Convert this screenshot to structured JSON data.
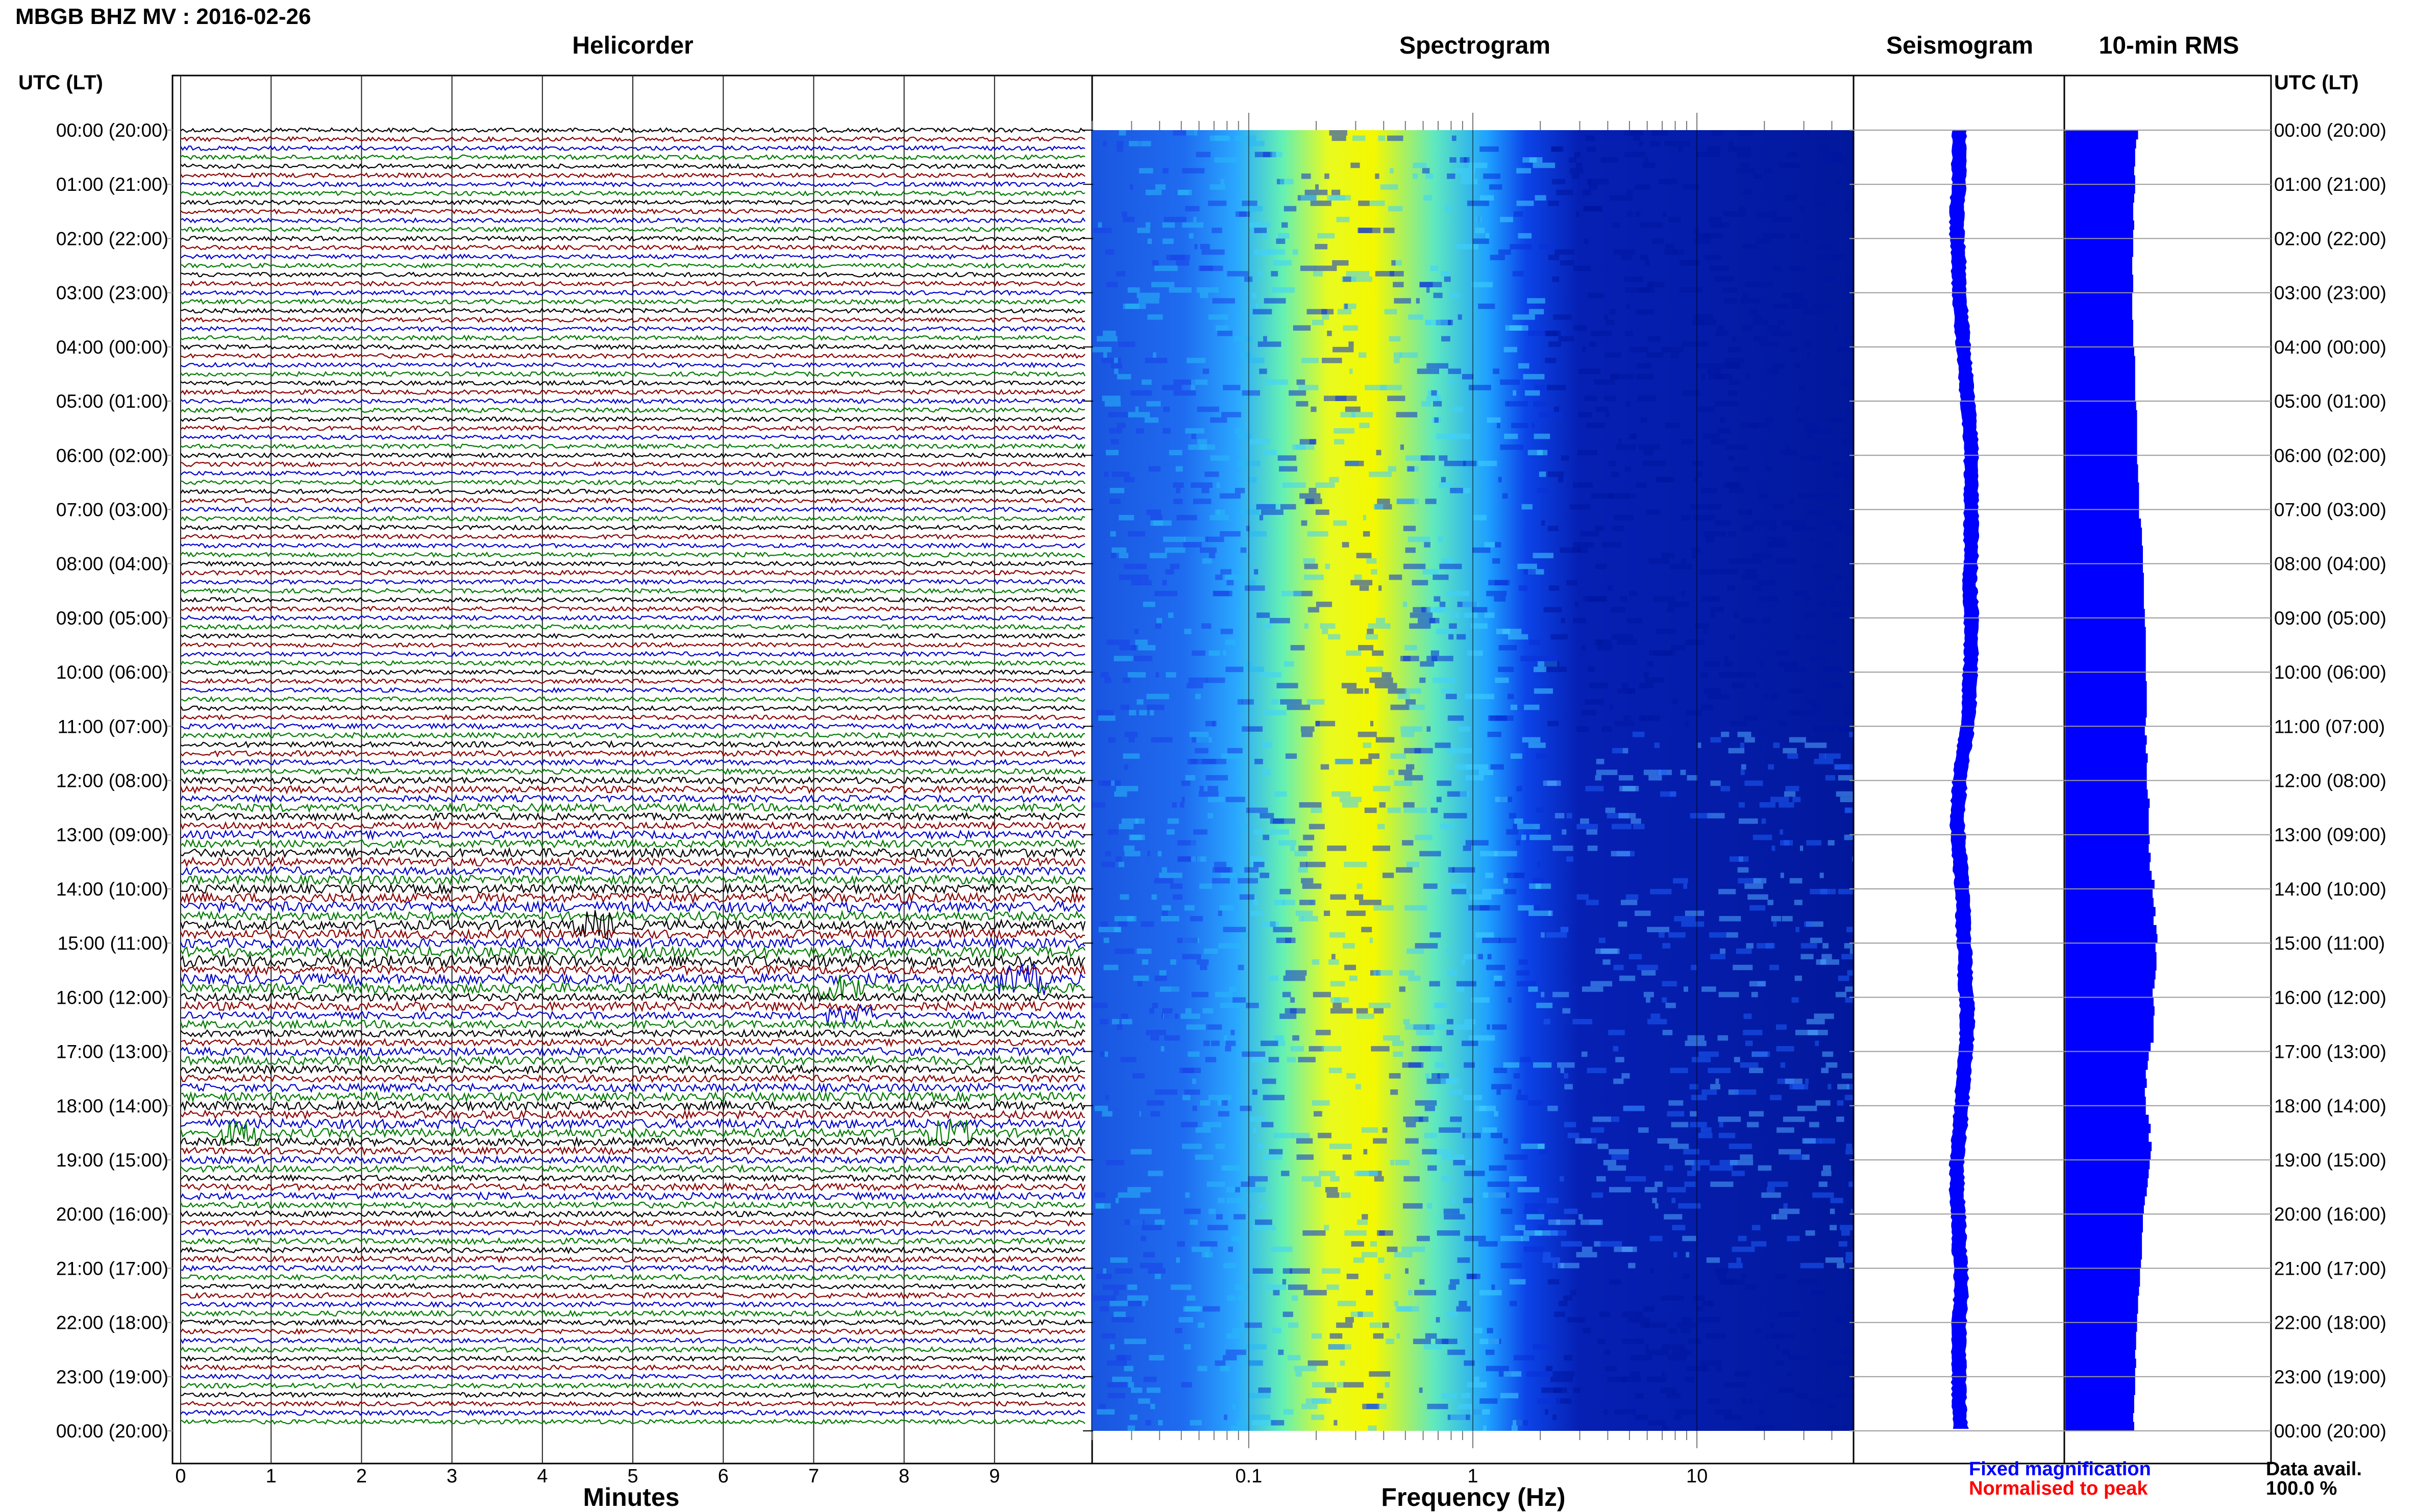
{
  "title": "MBGB BHZ MV : 2016-02-26",
  "utc_label": "UTC (LT)",
  "panels": {
    "helicorder": "Helicorder",
    "spectrogram": "Spectrogram",
    "seismogram": "Seismogram",
    "rms": "10-min RMS"
  },
  "legend": {
    "fixed": "Fixed magnification",
    "normalised": "Normalised to peak",
    "fixed_color": "#0000ff",
    "normalised_color": "#ff0000"
  },
  "availability": {
    "label": "Data avail.",
    "value": "100.0 %"
  },
  "colors": {
    "trace_cycle": [
      "#000000",
      "#8b0000",
      "#0000cd",
      "#007a00"
    ],
    "seismogram": "#0000ff",
    "rms": "#0000ff",
    "spectrogram_map": [
      "#00008b",
      "#0030ff",
      "#18b4ff",
      "#5ff2b0",
      "#ffff00"
    ]
  },
  "chart_data": [
    {
      "type": "line",
      "name": "helicorder",
      "title": "Helicorder",
      "xlabel": "Minutes",
      "x_ticks": [
        "0",
        "1",
        "2",
        "3",
        "4",
        "5",
        "6",
        "7",
        "8",
        "9"
      ],
      "xlim": [
        0,
        10
      ],
      "y_ticks": [
        "00:00 (20:00)",
        "01:00 (21:00)",
        "02:00 (22:00)",
        "03:00 (23:00)",
        "04:00 (00:00)",
        "05:00 (01:00)",
        "06:00 (02:00)",
        "07:00 (03:00)",
        "08:00 (04:00)",
        "09:00 (05:00)",
        "10:00 (06:00)",
        "11:00 (07:00)",
        "12:00 (08:00)",
        "13:00 (09:00)",
        "14:00 (10:00)",
        "15:00 (11:00)",
        "16:00 (12:00)",
        "17:00 (13:00)",
        "18:00 (14:00)",
        "19:00 (15:00)",
        "20:00 (16:00)",
        "21:00 (17:00)",
        "22:00 (18:00)",
        "23:00 (19:00)",
        "00:00 (20:00)"
      ],
      "lines_per_hour": 6,
      "line_amplitude": [
        1.0,
        1.0,
        1.0,
        1.0,
        1.0,
        1.0,
        1.0,
        1.0,
        1.0,
        1.0,
        1.0,
        1.0,
        1.0,
        1.0,
        1.0,
        1.0,
        1.0,
        1.0,
        1.0,
        1.0,
        1.0,
        1.0,
        1.0,
        1.0,
        1.0,
        1.0,
        1.0,
        1.0,
        1.0,
        1.0,
        1.0,
        1.0,
        1.0,
        1.0,
        1.0,
        1.0,
        1.0,
        1.0,
        1.0,
        1.0,
        1.0,
        1.0,
        1.0,
        1.0,
        1.0,
        1.0,
        1.0,
        1.0,
        1.0,
        1.0,
        1.0,
        1.0,
        1.0,
        1.0,
        1.0,
        1.0,
        1.0,
        1.0,
        1.0,
        1.0,
        1.0,
        1.0,
        1.0,
        1.0,
        1.0,
        1.0,
        1.2,
        1.2,
        1.3,
        1.3,
        1.2,
        1.2,
        1.5,
        1.6,
        1.5,
        1.8,
        1.6,
        1.5,
        1.8,
        1.7,
        2.0,
        1.9,
        1.8,
        2.0,
        2.0,
        2.2,
        2.4,
        2.0,
        2.2,
        2.0,
        2.2,
        2.4,
        2.6,
        2.0,
        2.4,
        2.2,
        1.8,
        2.0,
        1.6,
        1.8,
        1.6,
        1.5,
        1.8,
        2.0,
        1.8,
        1.6,
        1.8,
        2.0,
        2.0,
        1.8,
        2.2,
        2.0,
        1.8,
        1.6,
        1.6,
        1.5,
        1.4,
        1.5,
        1.6,
        1.4,
        1.3,
        1.2,
        1.2,
        1.3,
        1.2,
        1.3,
        1.2,
        1.2,
        1.1,
        1.2,
        1.1,
        1.2,
        1.2,
        1.1,
        1.1,
        1.2,
        1.0,
        1.1,
        1.0,
        1.1,
        1.1,
        1.0,
        1.1,
        1.0
      ],
      "events_minute": [
        [
          88,
          4.6
        ],
        [
          94,
          9.3
        ],
        [
          95,
          7.3
        ],
        [
          98,
          7.4
        ],
        [
          111,
          8.5
        ],
        [
          111,
          0.7
        ]
      ]
    },
    {
      "type": "heatmap",
      "name": "spectrogram",
      "title": "Spectrogram",
      "xlabel": "Frequency (Hz)",
      "x_scale": "log",
      "xlim": [
        0.02,
        50
      ],
      "x_ticks": [
        "0.1",
        "1",
        "10"
      ],
      "x_tick_values": [
        0.1,
        1,
        10
      ],
      "peak_frequency_hz": 0.35
    },
    {
      "type": "line",
      "name": "seismogram",
      "title": "Seismogram",
      "drift": [
        0.0,
        0.0,
        0.0,
        -0.1,
        -0.1,
        0.0,
        0.0,
        0.1,
        0.2,
        0.3,
        0.4,
        0.5,
        0.6,
        0.6,
        0.6,
        0.6,
        0.6,
        0.5,
        0.6,
        0.6,
        0.6,
        0.5,
        0.5,
        0.3,
        0.1,
        0.0,
        -0.1,
        0.0,
        0.1,
        0.2,
        0.2,
        0.3,
        0.3,
        0.4,
        0.4,
        0.3,
        0.2,
        0.1,
        0.0,
        -0.1,
        -0.1,
        0.0,
        0.0,
        0.1,
        0.1,
        0.0,
        0.0,
        0.0,
        0.0,
        0.1
      ]
    },
    {
      "type": "bar",
      "name": "10-min RMS",
      "title": "10-min RMS",
      "orientation": "horizontal",
      "bins_per_hour": 6,
      "values": [
        0.75,
        0.73,
        0.72,
        0.72,
        0.71,
        0.72,
        0.72,
        0.71,
        0.7,
        0.7,
        0.71,
        0.7,
        0.7,
        0.7,
        0.69,
        0.69,
        0.7,
        0.7,
        0.69,
        0.69,
        0.69,
        0.7,
        0.7,
        0.7,
        0.71,
        0.72,
        0.72,
        0.72,
        0.72,
        0.72,
        0.73,
        0.74,
        0.74,
        0.74,
        0.74,
        0.74,
        0.74,
        0.75,
        0.75,
        0.76,
        0.76,
        0.76,
        0.76,
        0.78,
        0.79,
        0.79,
        0.8,
        0.8,
        0.8,
        0.81,
        0.81,
        0.81,
        0.81,
        0.82,
        0.82,
        0.83,
        0.83,
        0.83,
        0.83,
        0.83,
        0.83,
        0.84,
        0.84,
        0.84,
        0.84,
        0.83,
        0.82,
        0.84,
        0.83,
        0.85,
        0.84,
        0.84,
        0.84,
        0.85,
        0.87,
        0.86,
        0.86,
        0.86,
        0.87,
        0.86,
        0.88,
        0.87,
        0.89,
        0.92,
        0.9,
        0.91,
        0.93,
        0.91,
        0.94,
        0.95,
        0.93,
        0.94,
        0.94,
        0.93,
        0.92,
        0.9,
        0.91,
        0.92,
        0.91,
        0.91,
        0.91,
        0.88,
        0.86,
        0.85,
        0.83,
        0.84,
        0.82,
        0.83,
        0.83,
        0.86,
        0.88,
        0.86,
        0.89,
        0.88,
        0.87,
        0.86,
        0.85,
        0.84,
        0.82,
        0.81,
        0.8,
        0.8,
        0.79,
        0.79,
        0.79,
        0.78,
        0.77,
        0.77,
        0.76,
        0.75,
        0.75,
        0.74,
        0.74,
        0.73,
        0.73,
        0.72,
        0.73,
        0.72,
        0.72,
        0.72,
        0.71,
        0.71,
        0.7,
        0.71
      ]
    }
  ]
}
